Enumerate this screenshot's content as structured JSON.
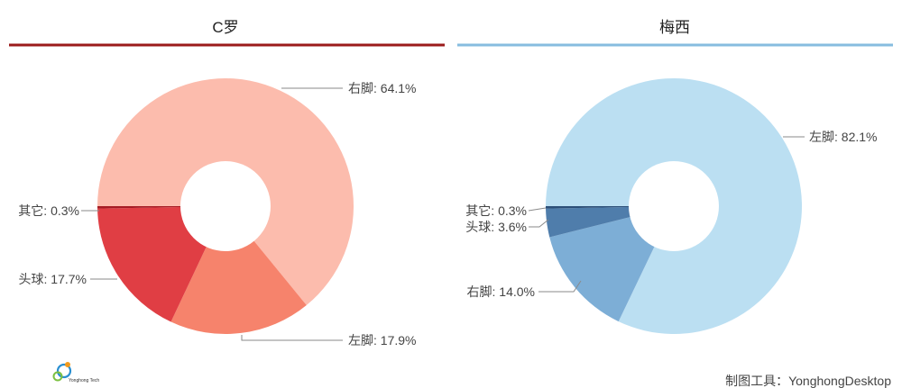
{
  "chart_data": [
    {
      "type": "pie",
      "title": "C罗",
      "accent": "#9b1b1b",
      "slices": [
        {
          "name": "右脚",
          "value": 64.1,
          "label": "右脚: 64.1%",
          "color": "#fcbcad"
        },
        {
          "name": "左脚",
          "value": 17.9,
          "label": "左脚: 17.9%",
          "color": "#f6836c"
        },
        {
          "name": "头球",
          "value": 17.7,
          "label": "头球: 17.7%",
          "color": "#e03e44"
        },
        {
          "name": "其它",
          "value": 0.3,
          "label": "其它: 0.3%",
          "color": "#a51c24"
        }
      ]
    },
    {
      "type": "pie",
      "title": "梅西",
      "accent": "#86bcdf",
      "slices": [
        {
          "name": "左脚",
          "value": 82.1,
          "label": "左脚: 82.1%",
          "color": "#bbdff2"
        },
        {
          "name": "右脚",
          "value": 14.0,
          "label": "右脚: 14.0%",
          "color": "#7daed6"
        },
        {
          "name": "头球",
          "value": 3.6,
          "label": "头球: 3.6%",
          "color": "#4f7dab"
        },
        {
          "name": "其它",
          "value": 0.3,
          "label": "其它: 0.3%",
          "color": "#2c4f78"
        }
      ]
    }
  ],
  "footer": {
    "logo_text": "Yonghong Tech",
    "tool_label": "制图工具：YonghongDesktop"
  }
}
